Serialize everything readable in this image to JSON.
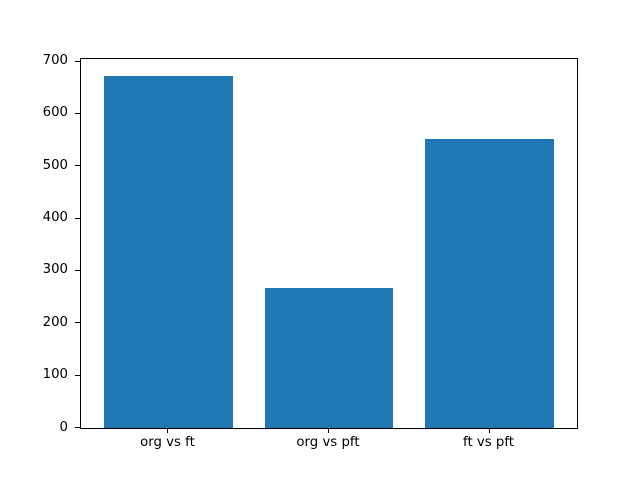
{
  "figure": {
    "background": "#ffffff",
    "spine_color": "#000000",
    "tick_label_color": "#000000"
  },
  "chart_data": {
    "type": "bar",
    "title": "",
    "xlabel": "",
    "ylabel": "",
    "categories": [
      "org vs ft",
      "org vs pft",
      "ft vs pft"
    ],
    "values": [
      673,
      267,
      553
    ],
    "bar_color": "#1f77b4",
    "ylim": [
      0,
      705
    ],
    "yticks": [
      0,
      100,
      200,
      300,
      400,
      500,
      600,
      700
    ],
    "grid": false,
    "legend": null,
    "bar_width_fraction": 0.8,
    "x_margin_units": 0.545
  }
}
